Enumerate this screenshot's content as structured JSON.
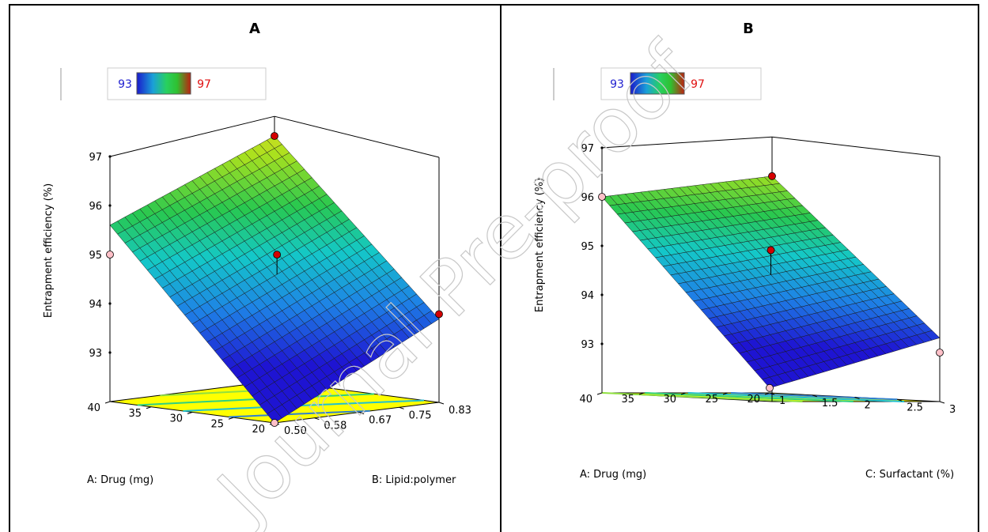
{
  "chart_data": [
    {
      "type": "surface3d",
      "panel_label": "A",
      "zlabel": "Entrapment efficiency (%)",
      "xlabel": "A: Drug (mg)",
      "ylabel": "B: Lipid:polymer",
      "x_ticks": [
        "40",
        "35",
        "30",
        "25",
        "20"
      ],
      "y_ticks": [
        "0.50",
        "0.58",
        "0.67",
        "0.75",
        "0.83"
      ],
      "z_ticks": [
        "93",
        "94",
        "95",
        "96",
        "97"
      ],
      "x_range": [
        20,
        40
      ],
      "y_range": [
        0.5,
        0.83
      ],
      "z_range": [
        92,
        97
      ],
      "colorbar": {
        "min_label": "93",
        "max_label": "97",
        "min": 93,
        "max": 97
      },
      "surface_corners": {
        "x_high_y_low": 95.6,
        "x_high_y_high": 97.0,
        "x_low_y_low": 92.0,
        "x_low_y_high": 93.7
      },
      "design_points": [
        {
          "x": 40,
          "y": 0.83,
          "z": 97.0,
          "color": "#d40000"
        },
        {
          "x": 30,
          "y": 0.67,
          "z": 95.0,
          "color": "#d40000"
        },
        {
          "x": 40,
          "y": 0.5,
          "z": 95.0,
          "color": "#ffc0c8"
        },
        {
          "x": 20,
          "y": 0.83,
          "z": 93.8,
          "color": "#d40000"
        },
        {
          "x": 20,
          "y": 0.5,
          "z": 92.0,
          "color": "#ffc0c8"
        }
      ],
      "contour_levels": [
        93,
        94,
        95,
        96
      ]
    },
    {
      "type": "surface3d",
      "panel_label": "B",
      "zlabel": "Entrapment efficiency (%)",
      "xlabel": "A: Drug (mg)",
      "ylabel": "C: Surfactant (%)",
      "x_ticks": [
        "40",
        "35",
        "30",
        "25",
        "20"
      ],
      "y_ticks": [
        "1",
        "1.5",
        "2",
        "2.5",
        "3"
      ],
      "z_ticks": [
        "93",
        "94",
        "95",
        "96",
        "97"
      ],
      "x_range": [
        20,
        40
      ],
      "y_range": [
        1,
        3
      ],
      "z_range": [
        92,
        97
      ],
      "colorbar": {
        "min_label": "93",
        "max_label": "97",
        "min": 93,
        "max": 97
      },
      "surface_corners": {
        "x_high_y_low": 96.0,
        "x_high_y_high": 96.6,
        "x_low_y_low": 92.1,
        "x_low_y_high": 93.3
      },
      "design_points": [
        {
          "x": 40,
          "y": 3,
          "z": 96.6,
          "color": "#d40000"
        },
        {
          "x": 30,
          "y": 2,
          "z": 95.0,
          "color": "#d40000"
        },
        {
          "x": 40,
          "y": 1,
          "z": 96.0,
          "color": "#ffc0c8"
        },
        {
          "x": 20,
          "y": 3,
          "z": 93.0,
          "color": "#ffc0c8"
        },
        {
          "x": 20,
          "y": 1,
          "z": 92.1,
          "color": "#ffc0c8"
        }
      ],
      "contour_levels": [
        93,
        94,
        95,
        96
      ]
    }
  ],
  "watermark": "Journal Pre-proof"
}
